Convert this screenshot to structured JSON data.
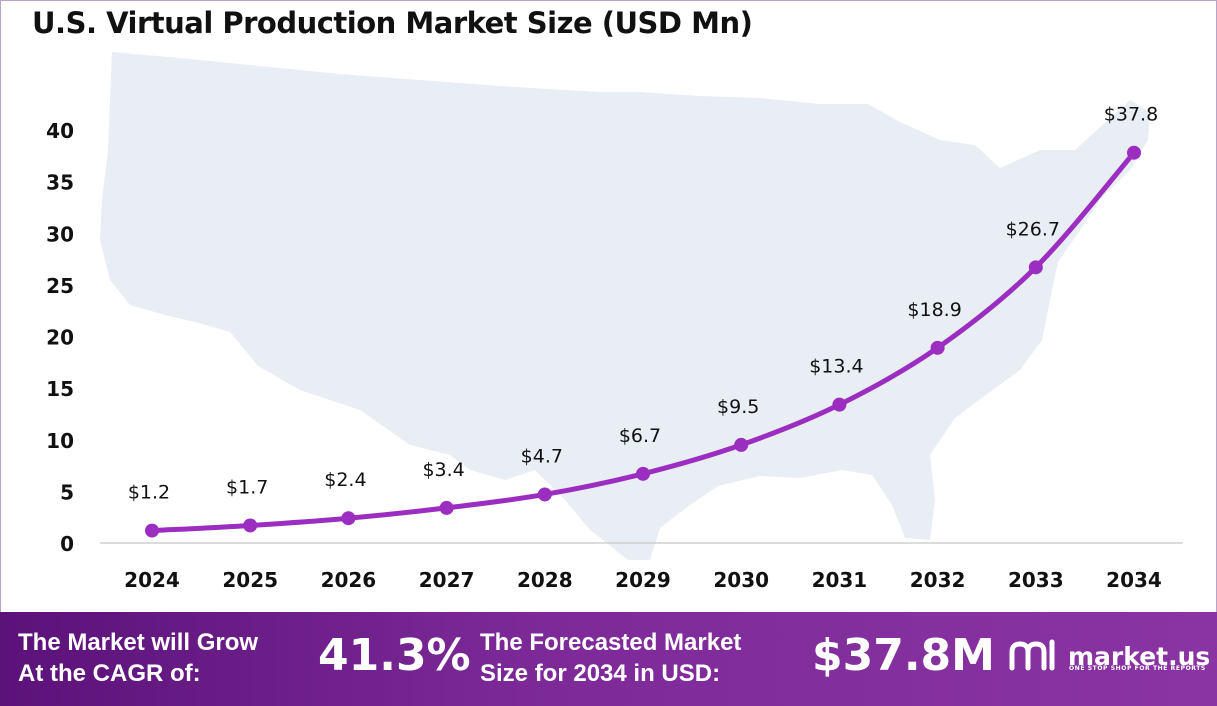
{
  "title": "U.S. Virtual Production Market Size (USD Mn)",
  "chart_data": {
    "type": "line",
    "title": "U.S. Virtual Production Market Size (USD Mn)",
    "categories": [
      "2024",
      "2025",
      "2026",
      "2027",
      "2028",
      "2029",
      "2030",
      "2031",
      "2032",
      "2033",
      "2034"
    ],
    "values": [
      1.2,
      1.7,
      2.4,
      3.4,
      4.7,
      6.7,
      9.5,
      13.4,
      18.9,
      26.7,
      37.8
    ],
    "data_labels": [
      "$1.2",
      "$1.7",
      "$2.4",
      "$3.4",
      "$4.7",
      "$6.7",
      "$9.5",
      "$13.4",
      "$18.9",
      "$26.7",
      "$37.8"
    ],
    "yticks": [
      0,
      5,
      10,
      15,
      20,
      25,
      30,
      35,
      40
    ],
    "ylim": [
      0,
      40
    ],
    "grid": false,
    "legend": "none",
    "line_color": "#9b2ec0",
    "background": "map of the United States (light blue-grey silhouette)"
  },
  "footer": {
    "cagr_label_line1": "The Market will Grow",
    "cagr_label_line2": "At the CAGR of:",
    "cagr_value": "41.3%",
    "forecast_label_line1": "The Forecasted Market",
    "forecast_label_line2": "Size for 2034 in USD:",
    "forecast_value": "$37.8M",
    "brand_name": "market.us",
    "brand_tagline": "ONE STOP SHOP FOR THE REPORTS",
    "brand_logo_icon": "market-us-logo-icon"
  },
  "colors": {
    "line": "#9b2ec0",
    "footer_start": "#5b1279",
    "footer_end": "#8a34a3",
    "map": "#e9eef5"
  }
}
